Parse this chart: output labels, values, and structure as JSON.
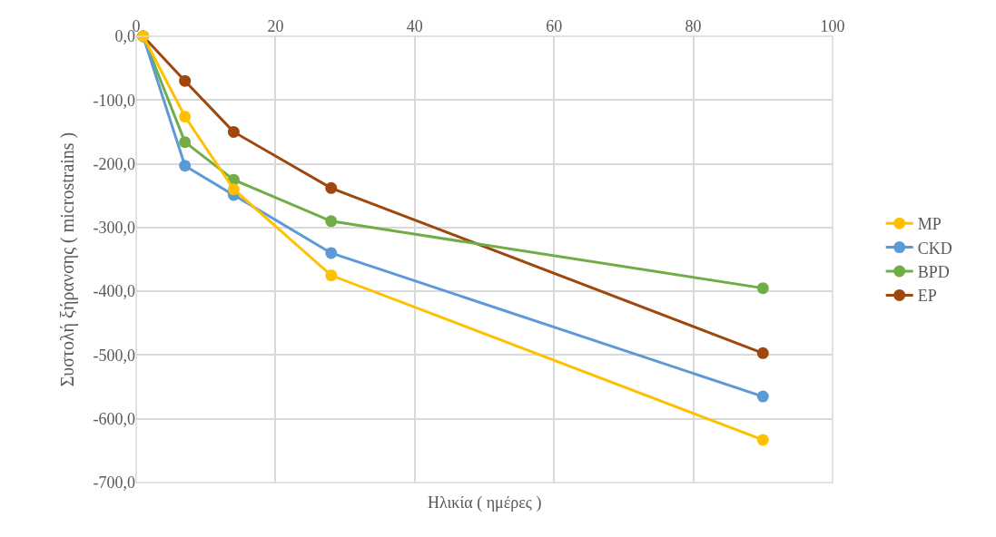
{
  "chart_data": {
    "type": "line",
    "xlabel": "Ηλικία ( ημέρες )",
    "ylabel": "Συστολή ξήρανσης ( microstrains )",
    "x": [
      1,
      7,
      14,
      28,
      90
    ],
    "series": [
      {
        "name": "MP",
        "color": "#ffc000",
        "values": [
          0,
          -126,
          -240,
          -375,
          -633
        ]
      },
      {
        "name": "CKD",
        "color": "#5b9bd5",
        "values": [
          0,
          -203,
          -249,
          -340,
          -565
        ]
      },
      {
        "name": "BPD",
        "color": "#70ad47",
        "values": [
          0,
          -166,
          -225,
          -290,
          -395
        ]
      },
      {
        "name": "EP",
        "color": "#9e480e",
        "values": [
          0,
          -70,
          -150,
          -238,
          -497
        ]
      }
    ],
    "xlim": [
      0,
      100
    ],
    "xticks": [
      0,
      20,
      40,
      60,
      80,
      100
    ],
    "ylim": [
      -700,
      0
    ],
    "yticks": [
      {
        "value": 0,
        "label": "0,0"
      },
      {
        "value": -100,
        "label": "-100,0"
      },
      {
        "value": -200,
        "label": "-200,0"
      },
      {
        "value": -300,
        "label": "-300,0"
      },
      {
        "value": -400,
        "label": "-400,0"
      },
      {
        "value": -500,
        "label": "-500,0"
      },
      {
        "value": -600,
        "label": "-600,0"
      },
      {
        "value": -700,
        "label": "-700,0"
      }
    ],
    "grid": true,
    "legend": "right",
    "marker": "circle",
    "line_style": "solid"
  }
}
